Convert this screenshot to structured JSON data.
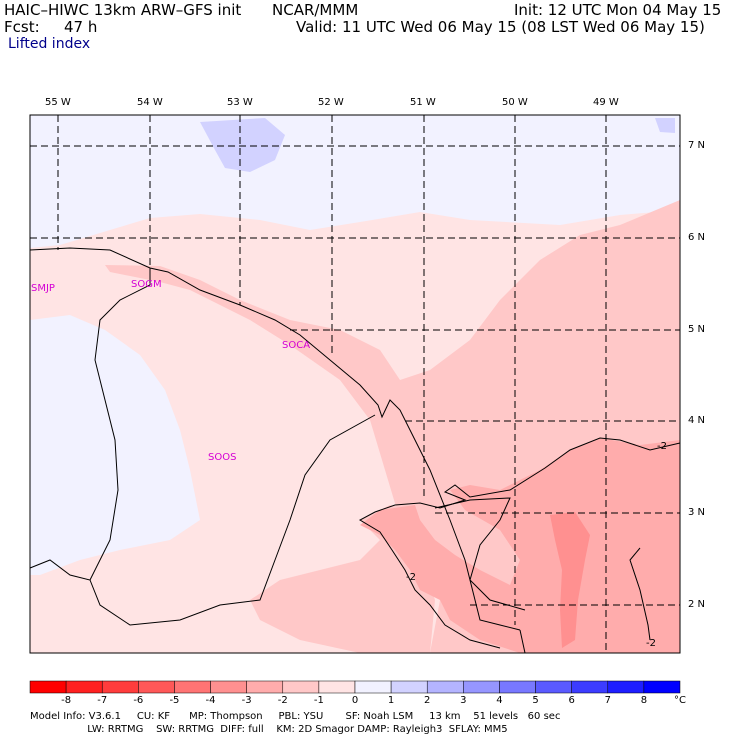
{
  "header": {
    "model_title": "HAIC–HIWC 13km ARW–GFS init",
    "org": "NCAR/MMM",
    "init": "Init: 12 UTC Mon 04 May 15",
    "fcst_label": "Fcst:",
    "fcst_value": "47 h",
    "valid": "Valid: 11 UTC Wed 06 May 15 (08 LST Wed 06 May 15)",
    "field": "Lifted index"
  },
  "map": {
    "lon_labels": [
      "55 W",
      "54 W",
      "53 W",
      "52 W",
      "51 W",
      "50 W",
      "49 W"
    ],
    "lat_labels": [
      "7 N",
      "6 N",
      "5 N",
      "4 N",
      "3 N",
      "2 N"
    ],
    "stations": [
      "SMJP",
      "SOGM",
      "SOCA",
      "SOOS"
    ],
    "contour_labels": [
      "-2",
      "-2",
      "-2"
    ]
  },
  "colorbar": {
    "ticks": [
      "-8",
      "-7",
      "-6",
      "-5",
      "-4",
      "-3",
      "-2",
      "-1",
      "0",
      "1",
      "2",
      "3",
      "4",
      "5",
      "6",
      "7",
      "8"
    ],
    "unit": "°C",
    "colors": [
      "#ff0000",
      "#ff2020",
      "#ff3c3c",
      "#ff5858",
      "#ff7474",
      "#ff9090",
      "#ffacac",
      "#ffc8c8",
      "#ffe4e4",
      "#f2f2ff",
      "#d2d2ff",
      "#b4b4ff",
      "#9696ff",
      "#7878ff",
      "#5a5aff",
      "#3c3cff",
      "#1e1eff",
      "#0000ff"
    ]
  },
  "footer": {
    "line1": "Model Info: V3.6.1     CU: KF      MP: Thompson     PBL: YSU       SF: Noah LSM     13 km    51 levels   60 sec",
    "line2": "                  LW: RRTMG    SW: RRTMG  DIFF: full    KM: 2D Smagor DAMP: Rayleigh3  SFLAY: MM5"
  }
}
